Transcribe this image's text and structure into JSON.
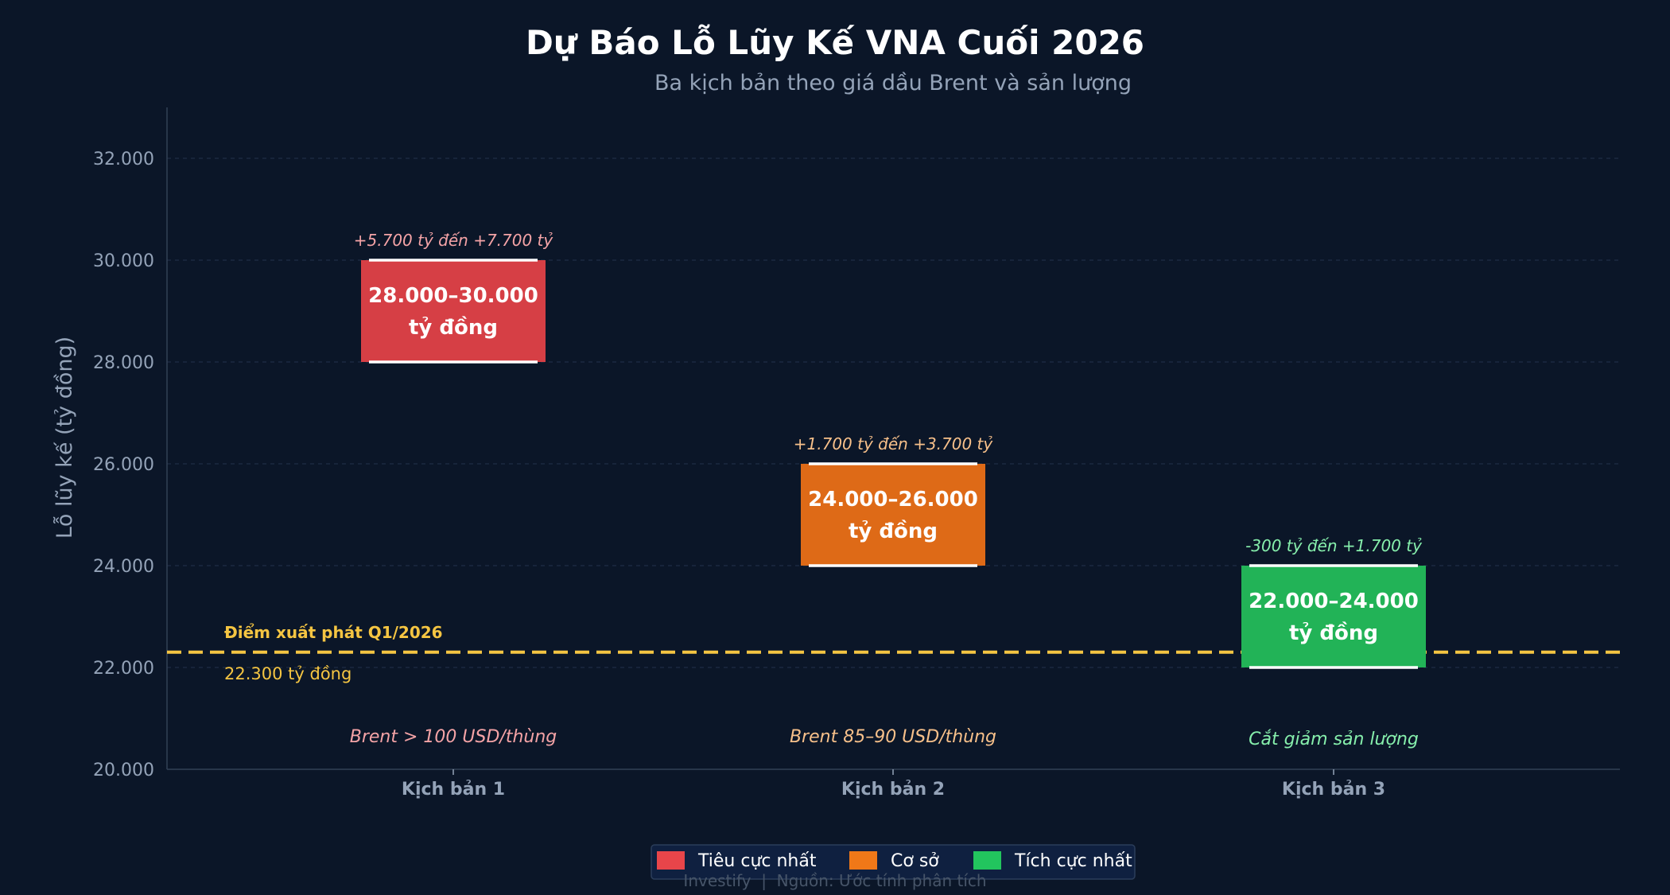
{
  "chart_data": {
    "type": "bar",
    "title": "Dự Báo Lỗ Lũy Kế VNA Cuối 2026",
    "subtitle": "Ba kịch bản theo giá dầu Brent và sản lượng",
    "ylabel": "Lỗ lũy kế (tỷ đồng)",
    "ylim": [
      20000,
      33000
    ],
    "yticks": [
      "20.000",
      "22.000",
      "24.000",
      "26.000",
      "28.000",
      "30.000",
      "32.000"
    ],
    "ytick_values": [
      20000,
      22000,
      24000,
      26000,
      28000,
      30000,
      32000
    ],
    "grid": true,
    "categories": [
      "Kịch bản 1",
      "Kịch bản 2",
      "Kịch bản 3"
    ],
    "ranges": [
      {
        "low": 28000,
        "high": 30000,
        "label_line1": "28.000–30.000",
        "label_line2": "tỷ đồng",
        "delta": "+5.700 tỷ đến +7.700 tỷ",
        "condition": "Brent > 100 USD/thùng",
        "color": "#d63f45",
        "accent": "#f4a3a6"
      },
      {
        "low": 24000,
        "high": 26000,
        "label_line1": "24.000–26.000",
        "label_line2": "tỷ đồng",
        "delta": "+1.700 tỷ đến +3.700 tỷ",
        "condition": "Brent 85–90 USD/thùng",
        "color": "#de6a17",
        "accent": "#f7c08a"
      },
      {
        "low": 22000,
        "high": 24000,
        "label_line1": "22.000–24.000",
        "label_line2": "tỷ đồng",
        "delta": "-300 tỷ đến +1.700 tỷ",
        "condition": "Cắt giảm sản lượng",
        "color": "#22b357",
        "accent": "#86efac"
      }
    ],
    "baseline": {
      "value": 22300,
      "title": "Điểm xuất phát Q1/2026",
      "value_label": "22.300 tỷ đồng",
      "color": "#f5c542"
    },
    "legend": {
      "placement": "bottom-center",
      "items": [
        {
          "label": "Tiêu cực nhất",
          "color": "#e8454a"
        },
        {
          "label": "Cơ sở",
          "color": "#f07818"
        },
        {
          "label": "Tích cực nhất",
          "color": "#22c55e"
        }
      ]
    },
    "footer": "Investify  |  Nguồn: Ước tính phân tích"
  }
}
